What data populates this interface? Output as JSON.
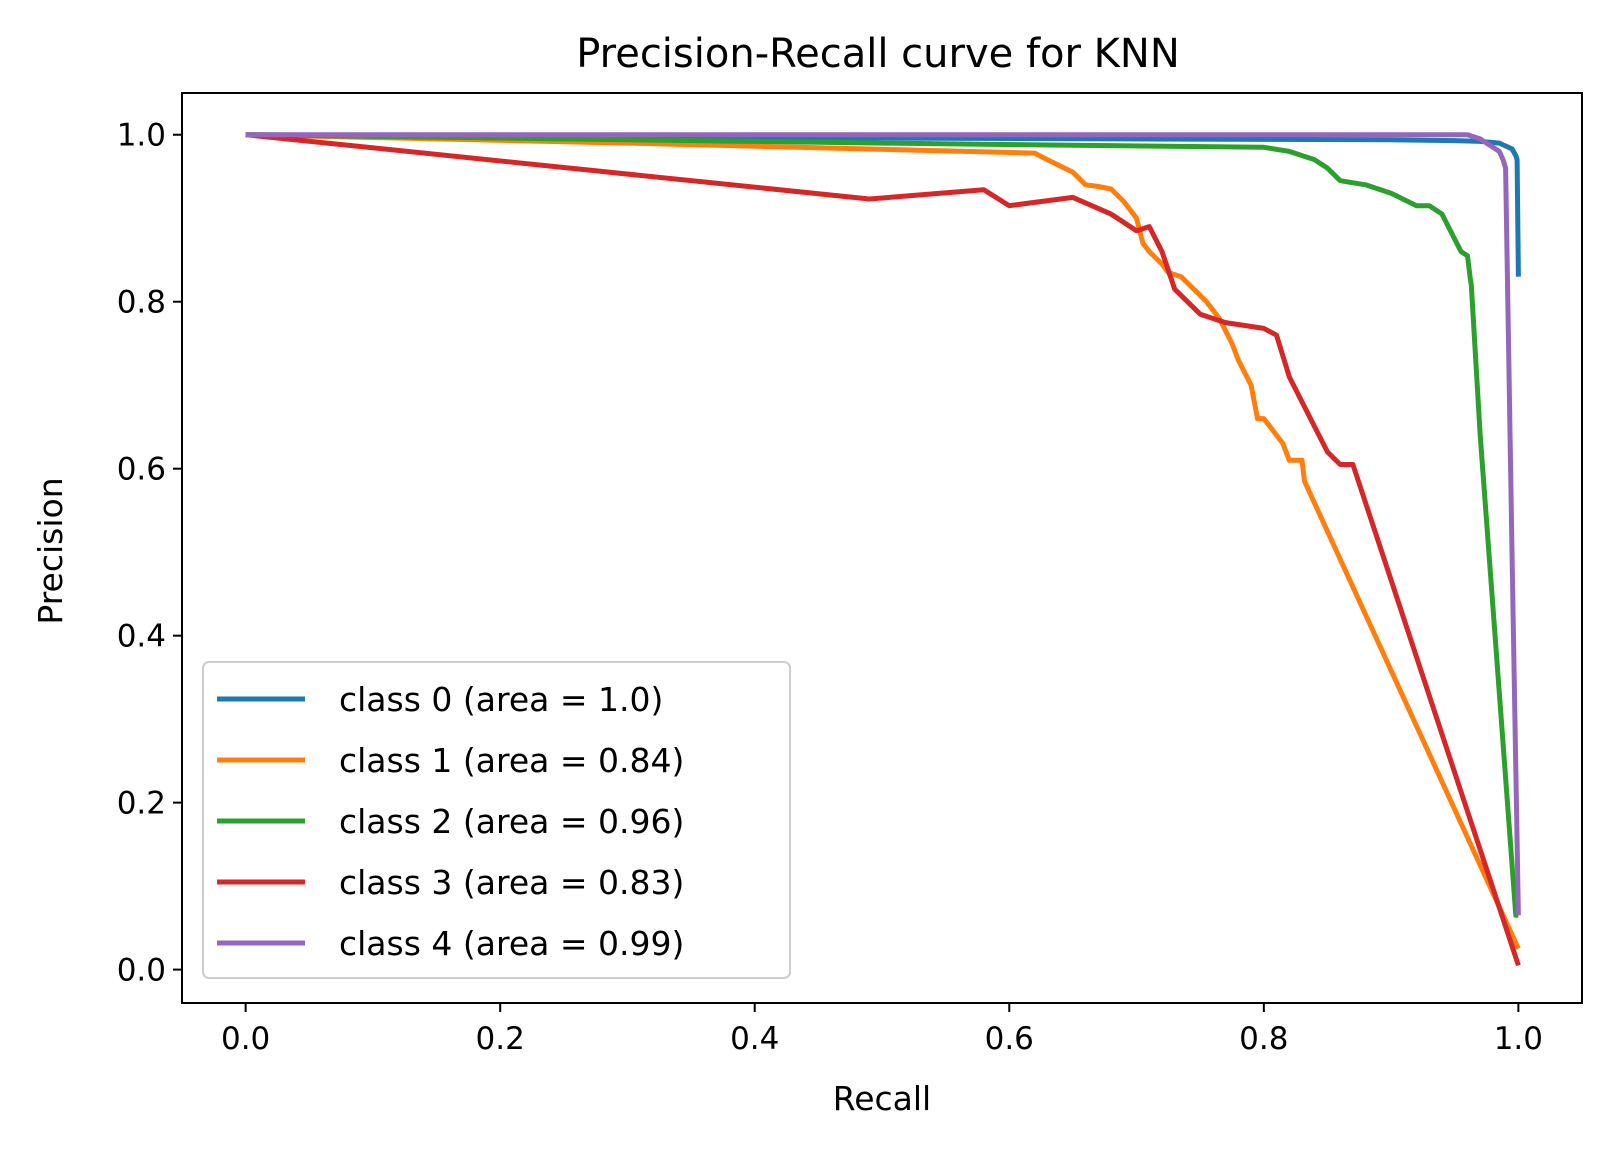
{
  "chart_data": {
    "type": "line",
    "title": "Precision-Recall curve for KNN",
    "xlabel": "Recall",
    "ylabel": "Precision",
    "xlim": [
      -0.05,
      1.05
    ],
    "ylim": [
      -0.04,
      1.05
    ],
    "xticks": [
      0.0,
      0.2,
      0.4,
      0.6,
      0.8,
      1.0
    ],
    "yticks": [
      0.0,
      0.2,
      0.4,
      0.6,
      0.8,
      1.0
    ],
    "xtick_labels": [
      "0.0",
      "0.2",
      "0.4",
      "0.6",
      "0.8",
      "1.0"
    ],
    "ytick_labels": [
      "0.0",
      "0.2",
      "0.4",
      "0.6",
      "0.8",
      "1.0"
    ],
    "grid": false,
    "legend_position": "lower-left",
    "series": [
      {
        "name": "class 0 (area = 1.0)",
        "color": "#1f77b4",
        "x": [
          0.0,
          0.5,
          0.9,
          0.95,
          0.97,
          0.985,
          0.995,
          0.998,
          0.999,
          1.0
        ],
        "y": [
          1.0,
          0.996,
          0.994,
          0.993,
          0.992,
          0.99,
          0.983,
          0.975,
          0.97,
          0.83
        ]
      },
      {
        "name": "class 1 (area = 0.84)",
        "color": "#ff7f0e",
        "x": [
          0.0,
          0.3,
          0.62,
          0.63,
          0.65,
          0.66,
          0.67,
          0.68,
          0.69,
          0.7,
          0.705,
          0.71,
          0.72,
          0.725,
          0.735,
          0.745,
          0.755,
          0.765,
          0.775,
          0.78,
          0.79,
          0.795,
          0.8,
          0.805,
          0.815,
          0.82,
          0.83,
          0.832,
          1.0
        ],
        "y": [
          1.0,
          0.99,
          0.978,
          0.97,
          0.955,
          0.94,
          0.938,
          0.935,
          0.92,
          0.9,
          0.87,
          0.86,
          0.845,
          0.835,
          0.83,
          0.815,
          0.8,
          0.78,
          0.75,
          0.73,
          0.7,
          0.66,
          0.66,
          0.65,
          0.63,
          0.61,
          0.61,
          0.585,
          0.025
        ]
      },
      {
        "name": "class 2 (area = 0.96)",
        "color": "#2ca02c",
        "x": [
          0.0,
          0.5,
          0.8,
          0.82,
          0.84,
          0.85,
          0.86,
          0.88,
          0.9,
          0.92,
          0.93,
          0.94,
          0.95,
          0.955,
          0.96,
          0.962,
          0.963,
          0.97,
          0.998,
          1.0
        ],
        "y": [
          1.0,
          0.99,
          0.985,
          0.98,
          0.97,
          0.96,
          0.945,
          0.94,
          0.93,
          0.915,
          0.915,
          0.905,
          0.875,
          0.86,
          0.855,
          0.83,
          0.82,
          0.64,
          0.065,
          0.065
        ]
      },
      {
        "name": "class 3 (area = 0.83)",
        "color": "#d62728",
        "x": [
          0.0,
          0.49,
          0.58,
          0.6,
          0.65,
          0.68,
          0.69,
          0.7,
          0.71,
          0.72,
          0.73,
          0.74,
          0.75,
          0.77,
          0.8,
          0.81,
          0.82,
          0.83,
          0.84,
          0.85,
          0.86,
          0.87,
          1.0
        ],
        "y": [
          1.0,
          0.923,
          0.934,
          0.915,
          0.925,
          0.905,
          0.895,
          0.885,
          0.89,
          0.86,
          0.815,
          0.8,
          0.785,
          0.775,
          0.768,
          0.76,
          0.71,
          0.68,
          0.65,
          0.62,
          0.605,
          0.605,
          0.005
        ]
      },
      {
        "name": "class 4 (area = 0.99)",
        "color": "#9467bd",
        "x": [
          0.0,
          0.5,
          0.96,
          0.97,
          0.98,
          0.985,
          0.988,
          0.99,
          0.995,
          1.0
        ],
        "y": [
          1.0,
          1.0,
          1.0,
          0.995,
          0.985,
          0.98,
          0.97,
          0.96,
          0.5,
          0.065
        ]
      }
    ]
  }
}
